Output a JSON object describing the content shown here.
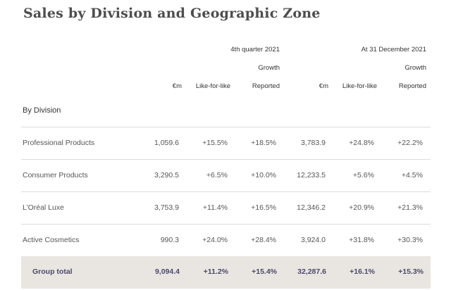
{
  "title": "Sales by Division and Geographic Zone",
  "headers": {
    "period1": "4th quarter 2021",
    "period2": "At 31 December 2021",
    "growth1": "Growth",
    "growth2": "Growth",
    "col_em": "€m",
    "col_lfl": "Like-for-like",
    "col_reported": "Reported"
  },
  "section": "By Division",
  "rows": [
    {
      "label": "Professional Products",
      "q4_em": "1,059.6",
      "q4_lfl": "+15.5%",
      "q4_rep": "+18.5%",
      "fy_em": "3,783.9",
      "fy_lfl": "+24.8%",
      "fy_rep": "+22.2%"
    },
    {
      "label": "Consumer Products",
      "q4_em": "3,290.5",
      "q4_lfl": "+6.5%",
      "q4_rep": "+10.0%",
      "fy_em": "12,233.5",
      "fy_lfl": "+5.6%",
      "fy_rep": "+4.5%"
    },
    {
      "label": "L’Oréal Luxe",
      "q4_em": "3,753.9",
      "q4_lfl": "+11.4%",
      "q4_rep": "+16.5%",
      "fy_em": "12,346.2",
      "fy_lfl": "+20.9%",
      "fy_rep": "+21.3%"
    },
    {
      "label": "Active Cosmetics",
      "q4_em": "990.3",
      "q4_lfl": "+24.0%",
      "q4_rep": "+28.4%",
      "fy_em": "3,924.0",
      "fy_lfl": "+31.8%",
      "fy_rep": "+30.3%"
    }
  ],
  "total": {
    "label": "Group total",
    "q4_em": "9,094.4",
    "q4_lfl": "+11.2%",
    "q4_rep": "+15.4%",
    "fy_em": "32,287.6",
    "fy_lfl": "+16.1%",
    "fy_rep": "+15.3%"
  }
}
